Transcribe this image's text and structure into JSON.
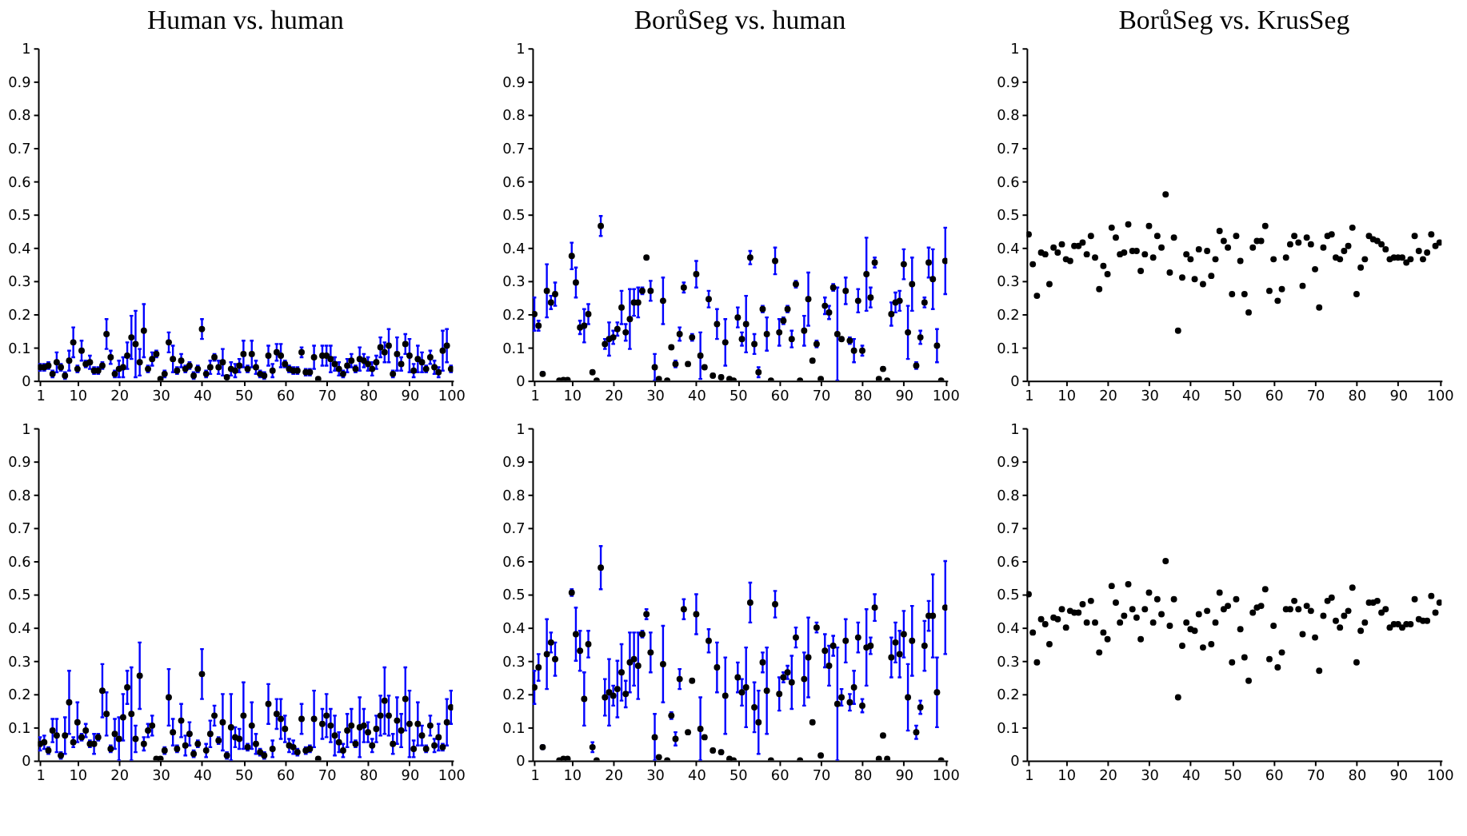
{
  "chart_data": [
    {
      "type": "scatter",
      "title": "Human vs. human",
      "marker": "circle",
      "xlim": [
        0.5,
        100.5
      ],
      "xticks": [
        1,
        10,
        20,
        30,
        40,
        50,
        60,
        70,
        80,
        90,
        100
      ],
      "ylim": [
        0,
        1
      ],
      "yticks": [
        0,
        0.1,
        0.2,
        0.3,
        0.4,
        0.5,
        0.6,
        0.7,
        0.8,
        0.9,
        1
      ],
      "x": [
        1,
        2,
        3,
        4,
        5,
        6,
        7,
        8,
        9,
        10,
        11,
        12,
        13,
        14,
        15,
        16,
        17,
        18,
        19,
        20,
        21,
        22,
        23,
        24,
        25,
        26,
        27,
        28,
        29,
        30,
        31,
        32,
        33,
        34,
        35,
        36,
        37,
        38,
        39,
        40,
        41,
        42,
        43,
        44,
        45,
        46,
        47,
        48,
        49,
        50,
        51,
        52,
        53,
        54,
        55,
        56,
        57,
        58,
        59,
        60,
        61,
        62,
        63,
        64,
        65,
        66,
        67,
        68,
        69,
        70,
        71,
        72,
        73,
        74,
        75,
        76,
        77,
        78,
        79,
        80,
        81,
        82,
        83,
        84,
        85,
        86,
        87,
        88,
        89,
        90,
        91,
        92,
        93,
        94,
        95,
        96,
        97,
        98,
        99,
        100
      ],
      "series": [
        {
          "color": "#000000",
          "values": [
            0.04,
            0.04,
            0.045,
            0.02,
            0.055,
            0.04,
            0.015,
            0.06,
            0.115,
            0.035,
            0.09,
            0.05,
            0.055,
            0.03,
            0.03,
            0.045,
            0.14,
            0.07,
            0.02,
            0.035,
            0.04,
            0.075,
            0.13,
            0.11,
            0.055,
            0.15,
            0.035,
            0.065,
            0.08,
            0.005,
            0.02,
            0.115,
            0.065,
            0.03,
            0.06,
            0.035,
            0.045,
            0.015,
            0.035,
            0.155,
            0.02,
            0.04,
            0.07,
            0.04,
            0.055,
            0.01,
            0.035,
            0.03,
            0.045,
            0.08,
            0.035,
            0.08,
            0.04,
            0.02,
            0.015,
            0.075,
            0.03,
            0.085,
            0.075,
            0.05,
            0.035,
            0.03,
            0.03,
            0.085,
            0.025,
            0.025,
            0.07,
            0.005,
            0.075,
            0.075,
            0.065,
            0.05,
            0.035,
            0.02,
            0.045,
            0.06,
            0.035,
            0.065,
            0.06,
            0.05,
            0.035,
            0.055,
            0.1,
            0.085,
            0.105,
            0.02,
            0.08,
            0.05,
            0.11,
            0.075,
            0.03,
            0.065,
            0.055,
            0.035,
            0.07,
            0.04,
            0.025,
            0.09,
            0.105,
            0.035
          ],
          "errors": [
            0.01,
            0.01,
            0.01,
            0.01,
            0.03,
            0.01,
            0.01,
            0.03,
            0.045,
            0.01,
            0.03,
            0.01,
            0.02,
            0.01,
            0.01,
            0.01,
            0.045,
            0.02,
            0.01,
            0.025,
            0.03,
            0.04,
            0.065,
            0.1,
            0.04,
            0.08,
            0.01,
            0.02,
            0.01,
            null,
            0.01,
            0.03,
            0.04,
            0.01,
            0.02,
            0.01,
            0.01,
            0.01,
            0.01,
            0.03,
            0.01,
            0.02,
            0.01,
            0.02,
            0.04,
            0.005,
            0.02,
            0.02,
            0.02,
            0.04,
            0.01,
            0.04,
            0.02,
            0.01,
            0.01,
            0.03,
            0.02,
            0.025,
            0.035,
            0.01,
            0.01,
            0.01,
            0.01,
            0.015,
            0.01,
            0.01,
            0.035,
            null,
            0.03,
            0.03,
            0.04,
            0.02,
            0.02,
            0.01,
            0.02,
            0.02,
            0.01,
            0.035,
            0.02,
            0.02,
            0.02,
            0.02,
            0.03,
            0.03,
            0.05,
            0.01,
            0.05,
            0.02,
            0.03,
            0.05,
            0.02,
            0.04,
            0.03,
            0.01,
            0.02,
            0.02,
            0.015,
            0.06,
            0.05,
            0.01
          ]
        }
      ]
    },
    {
      "type": "scatter",
      "title": "BorůSeg vs. human",
      "marker": "circle",
      "xlim": [
        0.5,
        100.5
      ],
      "xticks": [
        1,
        10,
        20,
        30,
        40,
        50,
        60,
        70,
        80,
        90,
        100
      ],
      "ylim": [
        0,
        1
      ],
      "yticks": [
        0,
        0.1,
        0.2,
        0.3,
        0.4,
        0.5,
        0.6,
        0.7,
        0.8,
        0.9,
        1
      ],
      "x": [
        1,
        2,
        3,
        4,
        5,
        6,
        7,
        8,
        9,
        10,
        11,
        12,
        13,
        14,
        15,
        16,
        17,
        18,
        19,
        20,
        21,
        22,
        23,
        24,
        25,
        26,
        27,
        28,
        29,
        30,
        31,
        32,
        33,
        34,
        35,
        36,
        37,
        38,
        39,
        40,
        41,
        42,
        43,
        44,
        45,
        46,
        47,
        48,
        49,
        50,
        51,
        52,
        53,
        54,
        55,
        56,
        57,
        58,
        59,
        60,
        61,
        62,
        63,
        64,
        65,
        66,
        67,
        68,
        69,
        70,
        71,
        72,
        73,
        74,
        75,
        76,
        77,
        78,
        79,
        80,
        81,
        82,
        83,
        84,
        85,
        86,
        87,
        88,
        89,
        90,
        91,
        92,
        93,
        94,
        95,
        96,
        97,
        98,
        99,
        100
      ],
      "series": [
        {
          "color": "#000000",
          "values": [
            0.2,
            0.165,
            0.02,
            0.27,
            0.235,
            0.26,
            0,
            0.002,
            0.002,
            0.375,
            0.295,
            0.16,
            0.165,
            0.2,
            0.025,
            0,
            0.465,
            0.11,
            0.125,
            0.13,
            0.155,
            0.22,
            0.145,
            0.185,
            0.235,
            0.235,
            0.27,
            0.37,
            0.27,
            0.04,
            0.005,
            0.24,
            0,
            0.1,
            0.05,
            0.14,
            0.28,
            0.05,
            0.13,
            0.32,
            0.075,
            0.04,
            0.245,
            0.015,
            0.17,
            0.01,
            0.115,
            0.005,
            0,
            0.19,
            0.125,
            0.17,
            0.37,
            0.11,
            0.025,
            0.215,
            0.14,
            0,
            0.36,
            0.145,
            0.18,
            0.215,
            0.125,
            0.29,
            0,
            0.15,
            0.245,
            0.06,
            0.11,
            0.005,
            0.225,
            0.205,
            0.28,
            0.14,
            0.125,
            0.27,
            0.12,
            0.09,
            0.24,
            0.09,
            0.32,
            0.25,
            0.355,
            0.005,
            0.035,
            0,
            0.2,
            0.235,
            0.24,
            0.35,
            0.145,
            0.29,
            0.045,
            0.13,
            0.235,
            0.355,
            0.305,
            0.105,
            0,
            0.36
          ],
          "errors": [
            0.05,
            0.015,
            0.005,
            0.08,
            0.02,
            0.035,
            null,
            null,
            null,
            0.04,
            0.045,
            0.02,
            0.05,
            0.03,
            0.005,
            null,
            0.03,
            0.015,
            0.05,
            0.02,
            0.02,
            0.05,
            0.025,
            0.09,
            0.04,
            0.045,
            0.01,
            0.005,
            0.03,
            0.04,
            null,
            0.07,
            null,
            0.005,
            0.01,
            0.02,
            0.015,
            0.005,
            0.01,
            0.04,
            0.07,
            0.005,
            0.025,
            0.005,
            0.045,
            0.005,
            0.07,
            null,
            null,
            0.03,
            0.02,
            0.085,
            0.02,
            0.03,
            0.015,
            0.01,
            0.05,
            null,
            0.04,
            0.04,
            0.01,
            0.01,
            0.025,
            0.01,
            null,
            0.045,
            0.08,
            0.005,
            0.01,
            null,
            0.025,
            0.02,
            0.01,
            0.14,
            0.005,
            0.04,
            0.01,
            0.035,
            0.035,
            0.015,
            0.11,
            0.03,
            0.015,
            null,
            0.005,
            null,
            0.035,
            0.03,
            0.03,
            0.045,
            0.08,
            0.08,
            0.01,
            0.02,
            0.015,
            0.045,
            0.09,
            0.05,
            null,
            0.1
          ]
        }
      ]
    },
    {
      "type": "scatter",
      "title": "BorůSeg vs. KrusSeg",
      "marker": "circle",
      "xlim": [
        0.5,
        100.5
      ],
      "xticks": [
        1,
        10,
        20,
        30,
        40,
        50,
        60,
        70,
        80,
        90,
        100
      ],
      "ylim": [
        0,
        1
      ],
      "yticks": [
        0,
        0.1,
        0.2,
        0.3,
        0.4,
        0.5,
        0.6,
        0.7,
        0.8,
        0.9,
        1
      ],
      "x": [
        1,
        2,
        3,
        4,
        5,
        6,
        7,
        8,
        9,
        10,
        11,
        12,
        13,
        14,
        15,
        16,
        17,
        18,
        19,
        20,
        21,
        22,
        23,
        24,
        25,
        26,
        27,
        28,
        29,
        30,
        31,
        32,
        33,
        34,
        35,
        36,
        37,
        38,
        39,
        40,
        41,
        42,
        43,
        44,
        45,
        46,
        47,
        48,
        49,
        50,
        51,
        52,
        53,
        54,
        55,
        56,
        57,
        58,
        59,
        60,
        61,
        62,
        63,
        64,
        65,
        66,
        67,
        68,
        69,
        70,
        71,
        72,
        73,
        74,
        75,
        76,
        77,
        78,
        79,
        80,
        81,
        82,
        83,
        84,
        85,
        86,
        87,
        88,
        89,
        90,
        91,
        92,
        93,
        94,
        95,
        96,
        97,
        98,
        99,
        100
      ],
      "series": [
        {
          "color": "#000000",
          "values": [
            0.44,
            0.35,
            0.255,
            0.385,
            0.38,
            0.29,
            0.4,
            0.385,
            0.41,
            0.365,
            0.36,
            0.405,
            0.405,
            0.415,
            0.38,
            0.435,
            0.37,
            0.275,
            0.345,
            0.32,
            0.46,
            0.43,
            0.38,
            0.385,
            0.47,
            0.39,
            0.39,
            0.33,
            0.38,
            0.465,
            0.37,
            0.435,
            0.4,
            0.56,
            0.325,
            0.43,
            0.15,
            0.31,
            0.38,
            0.365,
            0.305,
            0.395,
            0.29,
            0.39,
            0.315,
            0.365,
            0.45,
            0.42,
            0.4,
            0.26,
            0.435,
            0.36,
            0.26,
            0.205,
            0.4,
            0.42,
            0.42,
            0.465,
            0.27,
            0.365,
            0.24,
            0.275,
            0.37,
            0.41,
            0.435,
            0.415,
            0.285,
            0.43,
            0.41,
            0.335,
            0.22,
            0.4,
            0.435,
            0.44,
            0.37,
            0.365,
            0.39,
            0.405,
            0.46,
            0.26,
            0.34,
            0.365,
            0.435,
            0.425,
            0.42,
            0.41,
            0.395,
            0.365,
            0.37,
            0.37,
            0.37,
            0.355,
            0.365,
            0.435,
            0.39,
            0.365,
            0.385,
            0.44,
            0.405,
            0.415
          ]
        }
      ]
    },
    {
      "type": "scatter",
      "marker": "circle",
      "xlim": [
        0.5,
        100.5
      ],
      "xticks": [
        1,
        10,
        20,
        30,
        40,
        50,
        60,
        70,
        80,
        90,
        100
      ],
      "ylim": [
        0,
        1
      ],
      "yticks": [
        0,
        0.1,
        0.2,
        0.3,
        0.4,
        0.5,
        0.6,
        0.7,
        0.8,
        0.9,
        1
      ],
      "x": [
        1,
        2,
        3,
        4,
        5,
        6,
        7,
        8,
        9,
        10,
        11,
        12,
        13,
        14,
        15,
        16,
        17,
        18,
        19,
        20,
        21,
        22,
        23,
        24,
        25,
        26,
        27,
        28,
        29,
        30,
        31,
        32,
        33,
        34,
        35,
        36,
        37,
        38,
        39,
        40,
        41,
        42,
        43,
        44,
        45,
        46,
        47,
        48,
        49,
        50,
        51,
        52,
        53,
        54,
        55,
        56,
        57,
        58,
        59,
        60,
        61,
        62,
        63,
        64,
        65,
        66,
        67,
        68,
        69,
        70,
        71,
        72,
        73,
        74,
        75,
        76,
        77,
        78,
        79,
        80,
        81,
        82,
        83,
        84,
        85,
        86,
        87,
        88,
        89,
        90,
        91,
        92,
        93,
        94,
        95,
        96,
        97,
        98,
        99,
        100
      ],
      "series": [
        {
          "color": "#000000",
          "values": [
            0.05,
            0.055,
            0.03,
            0.09,
            0.075,
            0.015,
            0.075,
            0.175,
            0.055,
            0.115,
            0.07,
            0.09,
            0.05,
            0.05,
            0.07,
            0.21,
            0.14,
            0.035,
            0.08,
            0.065,
            0.13,
            0.22,
            0.14,
            0.065,
            0.255,
            0.05,
            0.09,
            0.105,
            0.005,
            0.005,
            0.03,
            0.19,
            0.085,
            0.035,
            0.12,
            0.045,
            0.08,
            0.02,
            0.05,
            0.26,
            0.03,
            0.08,
            0.135,
            0.06,
            0.115,
            0.015,
            0.1,
            0.07,
            0.065,
            0.135,
            0.04,
            0.105,
            0.05,
            0.025,
            0.015,
            0.17,
            0.035,
            0.14,
            0.125,
            0.095,
            0.045,
            0.04,
            0.025,
            0.125,
            0.03,
            0.035,
            0.125,
            0.005,
            0.11,
            0.135,
            0.105,
            0.075,
            0.055,
            0.03,
            0.09,
            0.105,
            0.05,
            0.1,
            0.105,
            0.085,
            0.045,
            0.095,
            0.135,
            0.18,
            0.135,
            0.05,
            0.12,
            0.09,
            0.185,
            0.11,
            0.035,
            0.11,
            0.075,
            0.035,
            0.105,
            0.045,
            0.07,
            0.04,
            0.115,
            0.16
          ],
          "errors": [
            0.02,
            0.02,
            0.01,
            0.035,
            0.05,
            0.01,
            0.055,
            0.095,
            0.015,
            0.06,
            0.01,
            0.02,
            0.01,
            0.03,
            0.01,
            0.08,
            0.065,
            0.01,
            0.045,
            0.065,
            0.07,
            0.05,
            0.14,
            0.04,
            0.1,
            0.02,
            0.02,
            0.03,
            null,
            null,
            0.01,
            0.085,
            0.04,
            0.01,
            0.05,
            0.03,
            0.035,
            0.01,
            0.01,
            0.075,
            0.02,
            0.04,
            0.03,
            0.01,
            0.085,
            0.01,
            0.1,
            0.03,
            0.03,
            0.1,
            0.01,
            0.07,
            0.03,
            0.01,
            0.01,
            0.06,
            0.025,
            0.045,
            0.06,
            0.04,
            0.02,
            0.02,
            0.01,
            0.045,
            0.01,
            0.01,
            0.085,
            null,
            0.045,
            0.065,
            0.05,
            0.06,
            0.03,
            0.02,
            0.05,
            0.05,
            0.01,
            0.09,
            0.05,
            0.03,
            0.02,
            0.04,
            0.06,
            0.1,
            0.06,
            0.03,
            0.07,
            0.05,
            0.095,
            0.1,
            0.025,
            0.065,
            0.03,
            0.01,
            0.03,
            0.02,
            0.04,
            0.01,
            0.07,
            0.05
          ]
        }
      ]
    },
    {
      "type": "scatter",
      "marker": "circle",
      "xlim": [
        0.5,
        100.5
      ],
      "xticks": [
        1,
        10,
        20,
        30,
        40,
        50,
        60,
        70,
        80,
        90,
        100
      ],
      "ylim": [
        0,
        1
      ],
      "yticks": [
        0,
        0.1,
        0.2,
        0.3,
        0.4,
        0.5,
        0.6,
        0.7,
        0.8,
        0.9,
        1
      ],
      "x": [
        1,
        2,
        3,
        4,
        5,
        6,
        7,
        8,
        9,
        10,
        11,
        12,
        13,
        14,
        15,
        16,
        17,
        18,
        19,
        20,
        21,
        22,
        23,
        24,
        25,
        26,
        27,
        28,
        29,
        30,
        31,
        32,
        33,
        34,
        35,
        36,
        37,
        38,
        39,
        40,
        41,
        42,
        43,
        44,
        45,
        46,
        47,
        48,
        49,
        50,
        51,
        52,
        53,
        54,
        55,
        56,
        57,
        58,
        59,
        60,
        61,
        62,
        63,
        64,
        65,
        66,
        67,
        68,
        69,
        70,
        71,
        72,
        73,
        74,
        75,
        76,
        77,
        78,
        79,
        80,
        81,
        82,
        83,
        84,
        85,
        86,
        87,
        88,
        89,
        90,
        91,
        92,
        93,
        94,
        95,
        96,
        97,
        98,
        99,
        100
      ],
      "series": [
        {
          "color": "#000000",
          "values": [
            0.22,
            0.28,
            0.04,
            0.32,
            0.355,
            0.305,
            0,
            0.005,
            0.005,
            0.505,
            0.38,
            0.33,
            0.185,
            0.35,
            0.04,
            0,
            0.58,
            0.19,
            0.205,
            0.195,
            0.215,
            0.265,
            0.2,
            0.295,
            0.305,
            0.285,
            0.38,
            0.44,
            0.325,
            0.07,
            0.01,
            0.29,
            0,
            0.135,
            0.065,
            0.245,
            0.455,
            0.085,
            0.24,
            0.44,
            0.095,
            0.07,
            0.36,
            0.03,
            0.28,
            0.025,
            0.195,
            0.005,
            0,
            0.25,
            0.205,
            0.22,
            0.475,
            0.16,
            0.115,
            0.295,
            0.21,
            0,
            0.47,
            0.2,
            0.25,
            0.265,
            0.235,
            0.37,
            0,
            0.245,
            0.31,
            0.115,
            0.4,
            0.015,
            0.33,
            0.285,
            0.345,
            0.17,
            0.19,
            0.36,
            0.175,
            0.22,
            0.37,
            0.165,
            0.34,
            0.345,
            0.46,
            0.005,
            0.075,
            0.005,
            0.31,
            0.355,
            0.32,
            0.38,
            0.19,
            0.36,
            0.085,
            0.16,
            0.345,
            0.435,
            0.435,
            0.205,
            0,
            0.46
          ],
          "errors": [
            0.05,
            0.04,
            0.005,
            0.105,
            0.03,
            0.05,
            null,
            null,
            null,
            0.01,
            0.08,
            0.06,
            0.08,
            0.04,
            0.015,
            null,
            0.065,
            0.055,
            0.1,
            0.03,
            0.085,
            0.085,
            0.04,
            0.09,
            0.08,
            0.1,
            0.01,
            0.015,
            0.06,
            0.07,
            0.005,
            0.115,
            null,
            0.01,
            0.02,
            0.03,
            0.03,
            0.005,
            0.005,
            0.06,
            0.095,
            0.005,
            0.035,
            0.005,
            0.075,
            0.005,
            0.115,
            null,
            null,
            0.045,
            0.04,
            0.12,
            0.06,
            0.075,
            0.095,
            0.03,
            0.13,
            null,
            0.04,
            0.05,
            0.015,
            0.02,
            0.08,
            0.03,
            null,
            0.08,
            0.12,
            0.005,
            0.015,
            0.005,
            0.05,
            0.06,
            0.03,
            0.17,
            0.025,
            0.065,
            0.025,
            0.05,
            0.045,
            0.02,
            0.115,
            0.025,
            0.04,
            null,
            0.005,
            null,
            0.06,
            0.06,
            0.07,
            0.07,
            0.1,
            0.105,
            0.02,
            0.02,
            0.075,
            0.045,
            0.125,
            0.105,
            null,
            0.14
          ]
        }
      ]
    },
    {
      "type": "scatter",
      "marker": "circle",
      "xlim": [
        0.5,
        100.5
      ],
      "xticks": [
        1,
        10,
        20,
        30,
        40,
        50,
        60,
        70,
        80,
        90,
        100
      ],
      "ylim": [
        0,
        1
      ],
      "yticks": [
        0,
        0.1,
        0.2,
        0.3,
        0.4,
        0.5,
        0.6,
        0.7,
        0.8,
        0.9,
        1
      ],
      "x": [
        1,
        2,
        3,
        4,
        5,
        6,
        7,
        8,
        9,
        10,
        11,
        12,
        13,
        14,
        15,
        16,
        17,
        18,
        19,
        20,
        21,
        22,
        23,
        24,
        25,
        26,
        27,
        28,
        29,
        30,
        31,
        32,
        33,
        34,
        35,
        36,
        37,
        38,
        39,
        40,
        41,
        42,
        43,
        44,
        45,
        46,
        47,
        48,
        49,
        50,
        51,
        52,
        53,
        54,
        55,
        56,
        57,
        58,
        59,
        60,
        61,
        62,
        63,
        64,
        65,
        66,
        67,
        68,
        69,
        70,
        71,
        72,
        73,
        74,
        75,
        76,
        77,
        78,
        79,
        80,
        81,
        82,
        83,
        84,
        85,
        86,
        87,
        88,
        89,
        90,
        91,
        92,
        93,
        94,
        95,
        96,
        97,
        98,
        99,
        100
      ],
      "series": [
        {
          "color": "#000000",
          "values": [
            0.5,
            0.385,
            0.295,
            0.425,
            0.41,
            0.35,
            0.43,
            0.425,
            0.455,
            0.4,
            0.45,
            0.445,
            0.445,
            0.47,
            0.415,
            0.48,
            0.415,
            0.325,
            0.385,
            0.365,
            0.525,
            0.475,
            0.415,
            0.435,
            0.53,
            0.455,
            0.43,
            0.365,
            0.455,
            0.505,
            0.415,
            0.485,
            0.44,
            0.6,
            0.405,
            0.485,
            0.19,
            0.345,
            0.415,
            0.395,
            0.39,
            0.44,
            0.34,
            0.45,
            0.35,
            0.415,
            0.505,
            0.455,
            0.465,
            0.295,
            0.485,
            0.395,
            0.31,
            0.24,
            0.445,
            0.46,
            0.465,
            0.515,
            0.305,
            0.405,
            0.28,
            0.325,
            0.455,
            0.455,
            0.48,
            0.455,
            0.38,
            0.465,
            0.45,
            0.37,
            0.27,
            0.435,
            0.48,
            0.49,
            0.42,
            0.4,
            0.435,
            0.45,
            0.52,
            0.295,
            0.39,
            0.415,
            0.475,
            0.475,
            0.48,
            0.445,
            0.455,
            0.4,
            0.41,
            0.41,
            0.4,
            0.41,
            0.41,
            0.485,
            0.425,
            0.42,
            0.42,
            0.495,
            0.445,
            0.475
          ]
        }
      ]
    }
  ]
}
